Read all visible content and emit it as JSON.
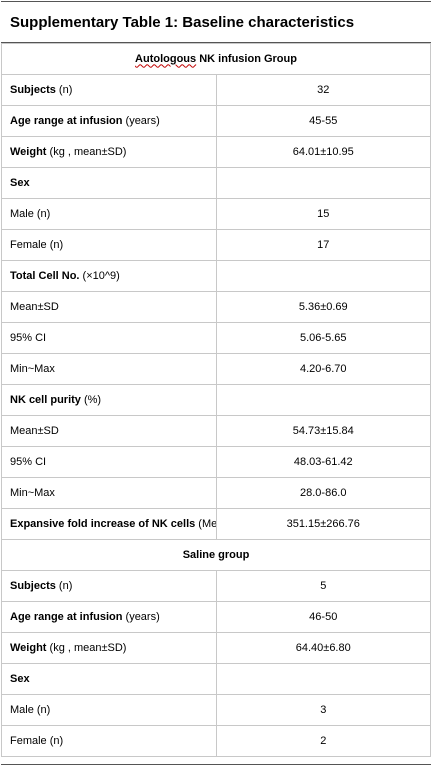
{
  "title": "Supplementary Table 1: Baseline characteristics",
  "nk_group": {
    "header_prefix": "Autologous",
    "header_rest": " NK infusion Group",
    "subjects_label": "Subjects",
    "subjects_unit": " (n)",
    "subjects_value": "32",
    "age_label": "Age range at infusion",
    "age_unit": " (years)",
    "age_value": "45-55",
    "weight_label": "Weight",
    "weight_unit": " (kg , mean±SD)",
    "weight_value": "64.01±10.95",
    "sex_label": "Sex",
    "male_label": "Male (n)",
    "male_value": "15",
    "female_label": "Female (n)",
    "female_value": "17",
    "cell_no_label": "Total Cell No.",
    "cell_no_unit": " (×10^9)",
    "cell_mean_label": "Mean±SD",
    "cell_mean_value": "5.36±0.69",
    "cell_ci_label": "95% CI",
    "cell_ci_value": "5.06-5.65",
    "cell_minmax_label": "Min~Max",
    "cell_minmax_value": "4.20-6.70",
    "purity_label": "NK cell purity",
    "purity_unit": " (%)",
    "purity_mean_label": "Mean±SD",
    "purity_mean_value": "54.73±15.84",
    "purity_ci_label": "95% CI",
    "purity_ci_value": "48.03-61.42",
    "purity_minmax_label": "Min~Max",
    "purity_minmax_value": "28.0-86.0",
    "fold_label": "Expansive fold increase of NK cells",
    "fold_unit": " (Mean±SD)",
    "fold_value": "351.15±266.76"
  },
  "saline_group": {
    "header": "Saline group",
    "subjects_label": "Subjects",
    "subjects_unit": " (n)",
    "subjects_value": "5",
    "age_label": "Age range at infusion",
    "age_unit": " (years)",
    "age_value": "46-50",
    "weight_label": "Weight",
    "weight_unit": " (kg , mean±SD)",
    "weight_value": "64.40±6.80",
    "sex_label": "Sex",
    "male_label": "Male (n)",
    "male_value": "3",
    "female_label": "Female (n)",
    "female_value": "2"
  }
}
